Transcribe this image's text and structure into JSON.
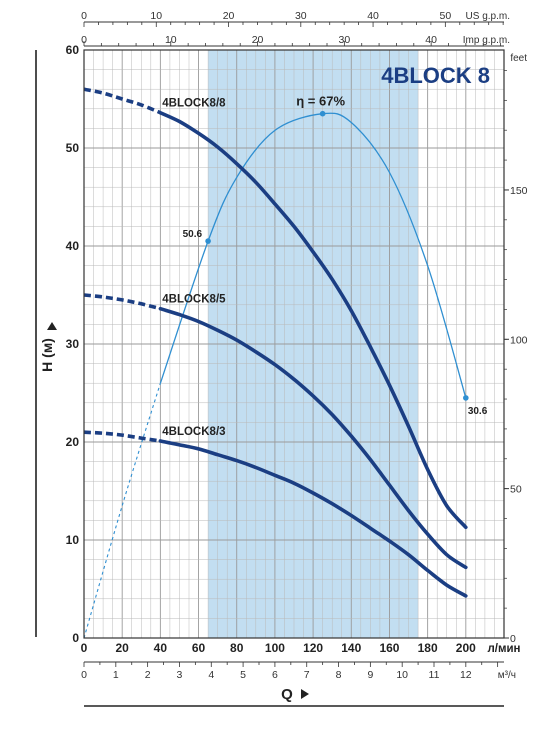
{
  "chart_data": {
    "type": "line",
    "title": "4BLOCK 8",
    "xlabel": "Q",
    "ylabel": "H (м)",
    "x_unit_primary": "л/мин",
    "x_unit_m3h": "м³/ч",
    "x_unit_usgpm": "US g.p.m.",
    "x_unit_impgpm": "Imp g.p.m.",
    "y_unit_feet": "feet",
    "xlim": [
      0,
      220
    ],
    "ylim": [
      0,
      60
    ],
    "x_ticks": [
      "0",
      "20",
      "40",
      "60",
      "80",
      "100",
      "120",
      "140",
      "160",
      "180",
      "200"
    ],
    "y_ticks": [
      "0",
      "10",
      "20",
      "30",
      "40",
      "50",
      "60"
    ],
    "m3h_ticks": [
      "0",
      "1",
      "2",
      "3",
      "4",
      "5",
      "6",
      "7",
      "8",
      "9",
      "10",
      "11",
      "12"
    ],
    "usgpm_ticks": [
      "0",
      "10",
      "20",
      "30",
      "40",
      "50"
    ],
    "impgpm_ticks": [
      "0",
      "10",
      "20",
      "30",
      "40"
    ],
    "feet_ticks": [
      "0",
      "50",
      "100",
      "150"
    ],
    "operating_range": [
      65,
      175
    ],
    "series": [
      {
        "name": "4BLOCK8/8",
        "x": [
          0,
          10,
          20,
          30,
          40,
          50,
          60,
          70,
          80,
          90,
          100,
          110,
          120,
          130,
          140,
          150,
          160,
          170,
          180,
          190,
          200
        ],
        "y": [
          56,
          55.6,
          55,
          54.4,
          53.6,
          52.7,
          51.5,
          50.1,
          48.4,
          46.5,
          44.3,
          42,
          39.4,
          36.6,
          33.4,
          29.7,
          25.8,
          21.6,
          17.2,
          13.5,
          11.3
        ]
      },
      {
        "name": "4BLOCK8/5",
        "x": [
          0,
          10,
          20,
          30,
          40,
          50,
          60,
          70,
          80,
          90,
          100,
          110,
          120,
          130,
          140,
          150,
          160,
          170,
          180,
          190,
          200
        ],
        "y": [
          35,
          34.8,
          34.5,
          34.1,
          33.6,
          33,
          32.3,
          31.4,
          30.4,
          29.2,
          27.9,
          26.4,
          24.7,
          22.8,
          20.6,
          18.2,
          15.6,
          13,
          10.6,
          8.5,
          7.2
        ]
      },
      {
        "name": "4BLOCK8/3",
        "x": [
          0,
          10,
          20,
          30,
          40,
          50,
          60,
          70,
          80,
          90,
          100,
          110,
          120,
          130,
          140,
          150,
          160,
          170,
          180,
          190,
          200
        ],
        "y": [
          21,
          20.9,
          20.7,
          20.4,
          20.1,
          19.7,
          19.3,
          18.7,
          18.1,
          17.4,
          16.6,
          15.8,
          14.8,
          13.7,
          12.5,
          11.2,
          9.9,
          8.5,
          6.9,
          5.4,
          4.3
        ]
      }
    ],
    "efficiency": {
      "label": "η = 67%",
      "start_label": "50.6",
      "end_label": "30.6",
      "x": [
        0,
        20,
        40,
        65,
        80,
        100,
        125,
        140,
        160,
        180,
        200
      ],
      "y": [
        0,
        13.5,
        26,
        40.5,
        47,
        51.8,
        53.5,
        52.6,
        47.5,
        38,
        24.5
      ]
    },
    "legend_placement": "inline",
    "grid": true
  }
}
